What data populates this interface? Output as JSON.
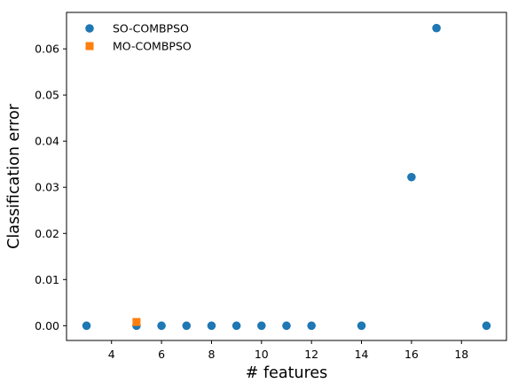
{
  "chart_data": {
    "type": "scatter",
    "title": "",
    "xlabel": "# features",
    "ylabel": "Classification error",
    "xlim": [
      2.2,
      19.8
    ],
    "ylim": [
      -0.0032,
      0.0679
    ],
    "xticks": [
      4,
      6,
      8,
      10,
      12,
      14,
      16,
      18
    ],
    "yticks": [
      0.0,
      0.01,
      0.02,
      0.03,
      0.04,
      0.05,
      0.06
    ],
    "ytick_labels": [
      "0.00",
      "0.01",
      "0.02",
      "0.03",
      "0.04",
      "0.05",
      "0.06"
    ],
    "grid": false,
    "legend": {
      "position": "top-left",
      "frame": false
    },
    "series": [
      {
        "name": "SO-COMBPSO",
        "marker": "circle",
        "color": "#1f77b4",
        "points": [
          [
            3,
            0.0
          ],
          [
            5,
            0.0
          ],
          [
            6,
            0.0
          ],
          [
            7,
            0.0
          ],
          [
            8,
            0.0
          ],
          [
            9,
            0.0
          ],
          [
            10,
            0.0
          ],
          [
            11,
            0.0
          ],
          [
            12,
            0.0
          ],
          [
            14,
            0.0
          ],
          [
            16,
            0.0322
          ],
          [
            17,
            0.0645
          ],
          [
            19,
            0.0
          ]
        ]
      },
      {
        "name": "MO-COMBPSO",
        "marker": "square",
        "color": "#ff7f0e",
        "points": [
          [
            5,
            0.0008
          ]
        ]
      }
    ]
  }
}
